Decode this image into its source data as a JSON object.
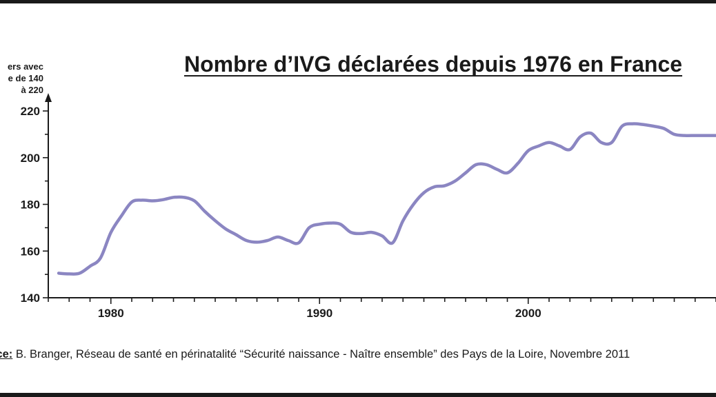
{
  "chart_data": {
    "type": "line",
    "title": "Nombre d’IVG déclarées depuis 1976 en France",
    "ylabel_lines": [
      "ers avec",
      "e de 140",
      "à 220"
    ],
    "ylim": [
      140,
      220
    ],
    "y_ticks": [
      "140",
      "160",
      "180",
      "200",
      "220"
    ],
    "xlim": [
      1977,
      2009
    ],
    "x_ticks": [
      "1980",
      "1990",
      "2000"
    ],
    "line_color": "#8b86c2",
    "series": [
      {
        "x": [
          1977.5,
          1978.0,
          1978.5,
          1979.0,
          1979.5,
          1980.0,
          1980.5,
          1981.0,
          1981.5,
          1982.0,
          1982.5,
          1983.0,
          1983.5,
          1984.0,
          1984.5,
          1985.0,
          1985.5,
          1986.0,
          1986.5,
          1987.0,
          1987.5,
          1988.0,
          1988.5,
          1989.0,
          1989.5,
          1990.0,
          1990.5,
          1991.0,
          1991.5,
          1992.0,
          1992.5,
          1993.0,
          1993.5,
          1994.0,
          1994.5,
          1995.0,
          1995.5,
          1996.0,
          1996.5,
          1997.0,
          1997.5,
          1998.0,
          1998.5,
          1999.0,
          1999.5,
          2000.0,
          2000.5,
          2001.0,
          2001.5,
          2002.0,
          2002.5,
          2003.0,
          2003.5,
          2004.0,
          2004.5,
          2005.0,
          2005.5,
          2006.0,
          2006.5,
          2007.0,
          2007.5,
          2008.0,
          2008.5,
          2009.0
        ],
        "values": [
          150.5,
          150.2,
          150.5,
          153.5,
          157.0,
          168.0,
          175.0,
          181.0,
          181.8,
          181.5,
          182.0,
          183.0,
          183.0,
          181.5,
          177.0,
          173.0,
          169.5,
          167.0,
          164.5,
          163.8,
          164.5,
          166.0,
          164.5,
          163.5,
          170.0,
          171.5,
          172.0,
          171.5,
          168.0,
          167.5,
          168.0,
          166.5,
          163.5,
          173.0,
          180.0,
          185.0,
          187.5,
          188.0,
          190.0,
          193.5,
          197.0,
          197.0,
          195.0,
          193.5,
          197.5,
          203.0,
          205.0,
          206.5,
          205.0,
          203.5,
          209.0,
          210.5,
          206.5,
          206.5,
          213.5,
          214.5,
          214.2,
          213.5,
          212.5,
          210.0,
          209.5,
          209.5,
          209.5,
          209.5
        ]
      }
    ]
  },
  "source": {
    "label": "rce:",
    "text": " B. Branger, Réseau de santé en périnatalité “Sécurité naissance - Naître ensemble” des Pays de la Loire, Novembre 2011"
  }
}
